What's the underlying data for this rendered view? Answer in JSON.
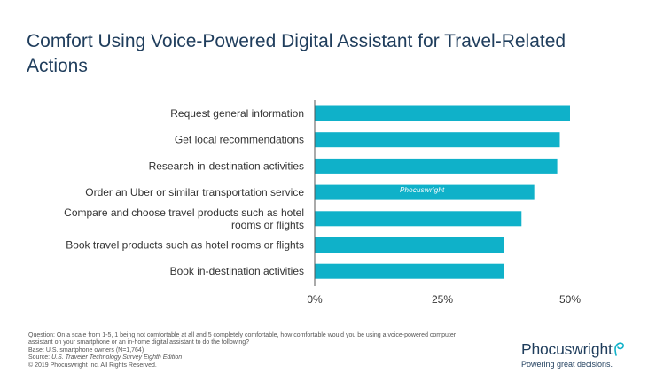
{
  "title": "Comfort Using Voice-Powered Digital Assistant for Travel-Related Actions",
  "chart_data": {
    "type": "bar",
    "orientation": "horizontal",
    "title": "Comfort Using Voice-Powered Digital Assistant for Travel-Related Actions",
    "categories": [
      [
        "Request general information"
      ],
      [
        "Get local recommendations"
      ],
      [
        "Research in-destination activities"
      ],
      [
        "Order an Uber or similar transportation service"
      ],
      [
        "Compare and choose travel products such as hotel",
        "rooms or flights"
      ],
      [
        "Book travel products such as hotel rooms or flights"
      ],
      [
        "Book in-destination activities"
      ]
    ],
    "values": [
      50,
      48,
      47.5,
      43,
      40.5,
      37,
      37
    ],
    "xlim": [
      0,
      50
    ],
    "xticks": [
      0,
      25,
      50
    ],
    "xtick_labels": [
      "0%",
      "25%",
      "50%"
    ],
    "xlabel": "",
    "ylabel": "",
    "grid": false,
    "legend": "none",
    "bar_color": "#0fb1c9"
  },
  "watermark": "Phocuswright",
  "footnotes": {
    "question": "Question: On a scale from 1-5, 1 being not comfortable at all and 5 completely comfortable, how comfortable would you be using a voice-powered computer assistant on your smartphone or an in-home digital assistant to do the following?",
    "base": "Base: U.S. smartphone owners (N=1,764)",
    "source_prefix": "Source: ",
    "source_title": "U.S. Traveler Technology Survey Eighth Edition",
    "copyright": "© 2019 Phocuswright Inc. All Rights Reserved."
  },
  "brand": {
    "name": "Phocuswright",
    "tagline": "Powering great decisions."
  },
  "colors": {
    "title": "#1f3d5c",
    "bar": "#0fb1c9",
    "axis": "#333333",
    "brand_swirl": "#0fb1c9"
  }
}
